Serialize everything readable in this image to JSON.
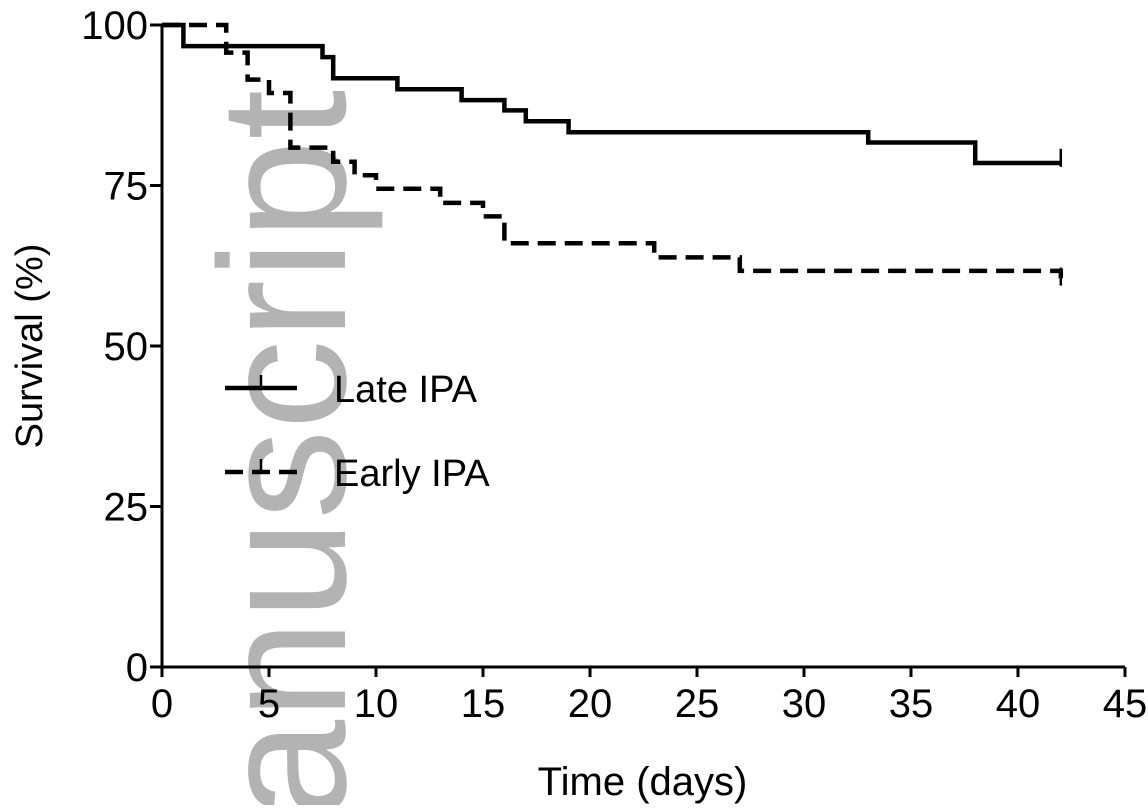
{
  "watermark": {
    "text": "anuscript",
    "color": "#b3b3b3"
  },
  "chart_data": {
    "type": "line",
    "step": true,
    "xlabel": "Time (days)",
    "ylabel": "Survival (%)",
    "xlim": [
      0,
      45
    ],
    "ylim": [
      0,
      100
    ],
    "xticks": [
      0,
      5,
      10,
      15,
      20,
      25,
      30,
      35,
      40,
      45
    ],
    "yticks": [
      0,
      25,
      50,
      75,
      100
    ],
    "grid": false,
    "legend_position": "left",
    "series": [
      {
        "name": "Late IPA",
        "style": "solid",
        "color": "#000000",
        "points": [
          [
            0,
            100
          ],
          [
            1,
            96.7
          ],
          [
            7,
            96.7
          ],
          [
            7.5,
            95
          ],
          [
            8,
            91.7
          ],
          [
            11,
            90
          ],
          [
            14,
            88.3
          ],
          [
            16,
            86.7
          ],
          [
            17,
            85
          ],
          [
            19,
            83.3
          ],
          [
            33,
            81.7
          ],
          [
            38,
            78.5
          ],
          [
            42,
            78.5
          ]
        ],
        "censored": [
          [
            42,
            79
          ]
        ]
      },
      {
        "name": "Early IPA",
        "style": "dashed",
        "color": "#000000",
        "points": [
          [
            0,
            100
          ],
          [
            3,
            95.7
          ],
          [
            4,
            91.5
          ],
          [
            5,
            89.4
          ],
          [
            6,
            80.9
          ],
          [
            8,
            78.7
          ],
          [
            9,
            76.6
          ],
          [
            10,
            74.5
          ],
          [
            13,
            72.3
          ],
          [
            15,
            70.2
          ],
          [
            16,
            66
          ],
          [
            23,
            63.8
          ],
          [
            27,
            61.7
          ],
          [
            42,
            61.7
          ],
          [
            42,
            59.6
          ]
        ],
        "censored": [
          [
            42,
            60.5
          ]
        ]
      }
    ]
  }
}
